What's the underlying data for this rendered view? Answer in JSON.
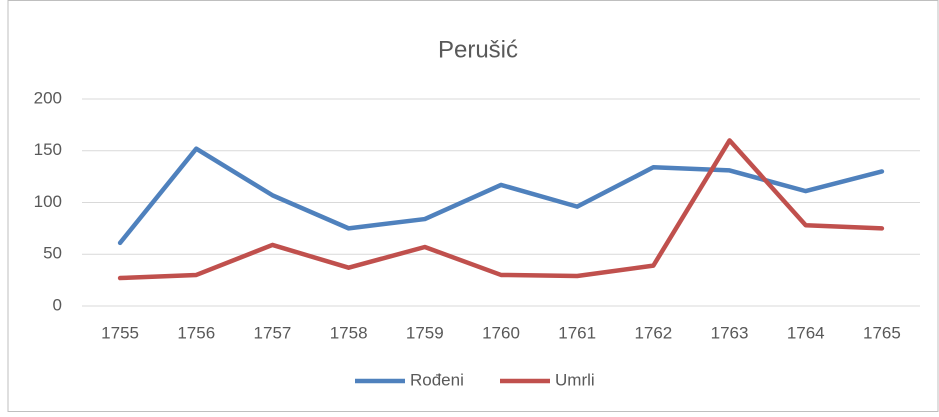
{
  "chart_data": {
    "type": "line",
    "title": "Perušić",
    "categories": [
      "1755",
      "1756",
      "1757",
      "1758",
      "1759",
      "1760",
      "1761",
      "1762",
      "1763",
      "1764",
      "1765"
    ],
    "series": [
      {
        "name": "Rođeni",
        "color": "#4f81bd",
        "values": [
          61,
          152,
          107,
          75,
          84,
          117,
          96,
          134,
          131,
          111,
          130
        ]
      },
      {
        "name": "Umrli",
        "color": "#c0504d",
        "values": [
          27,
          30,
          59,
          37,
          57,
          30,
          29,
          39,
          160,
          78,
          75
        ]
      }
    ],
    "ylim": [
      0,
      200
    ],
    "yticks": [
      0,
      50,
      100,
      150,
      200
    ],
    "grid": true,
    "legend": "bottom"
  }
}
